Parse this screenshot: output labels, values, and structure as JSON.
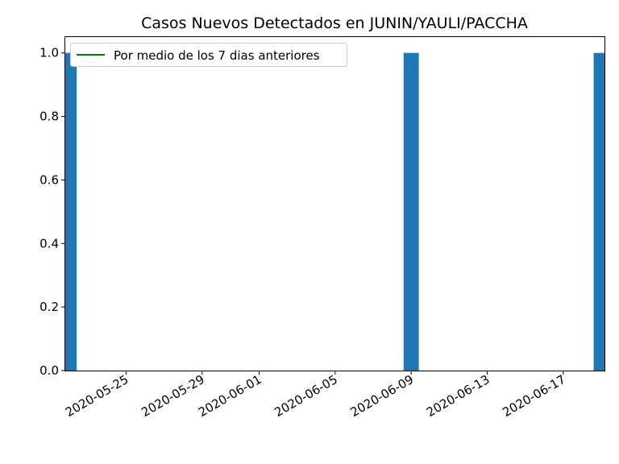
{
  "chart_data": {
    "type": "bar",
    "title": "Casos Nuevos Detectados en JUNIN/YAULI/PACCHA",
    "xlabel": "",
    "ylabel": "",
    "x_axis_type": "date",
    "xlim": [
      "2020-05-22",
      "2020-06-19"
    ],
    "ylim": [
      0,
      1.05
    ],
    "x_ticks": [
      "2020-05-25",
      "2020-05-29",
      "2020-06-01",
      "2020-06-05",
      "2020-06-09",
      "2020-06-13",
      "2020-06-17"
    ],
    "y_ticks": [
      0.0,
      0.2,
      0.4,
      0.6,
      0.8,
      1.0
    ],
    "y_tick_labels": [
      "0.0",
      "0.2",
      "0.4",
      "0.6",
      "0.8",
      "1.0"
    ],
    "grid": false,
    "legend_position": "top-left",
    "series": [
      {
        "type": "bar",
        "color": "#1f77b4",
        "points": [
          {
            "x": "2020-05-22",
            "y": 1
          },
          {
            "x": "2020-06-09",
            "y": 1
          },
          {
            "x": "2020-06-19",
            "y": 1
          }
        ]
      },
      {
        "type": "line",
        "name": "Por medio de los 7 dias anteriores",
        "color": "#008000",
        "points": []
      }
    ]
  }
}
